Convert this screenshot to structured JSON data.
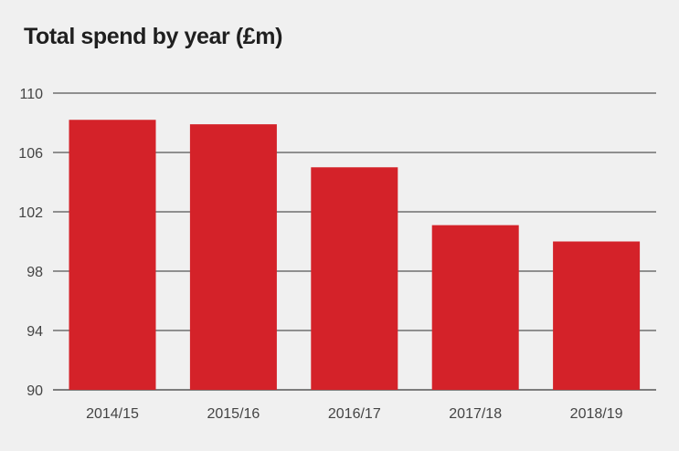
{
  "chart_data": {
    "type": "bar",
    "title": "Total spend by year (£m)",
    "xlabel": "",
    "ylabel": "",
    "categories": [
      "2014/15",
      "2015/16",
      "2016/17",
      "2017/18",
      "2018/19"
    ],
    "values": [
      108.2,
      107.9,
      105.0,
      101.1,
      100.0
    ],
    "ylim": [
      90,
      110
    ],
    "yticks": [
      110,
      106,
      102,
      98,
      94,
      90
    ],
    "grid": true,
    "legend": "none",
    "bar_color": "#d42229",
    "grid_color": "#555555"
  }
}
